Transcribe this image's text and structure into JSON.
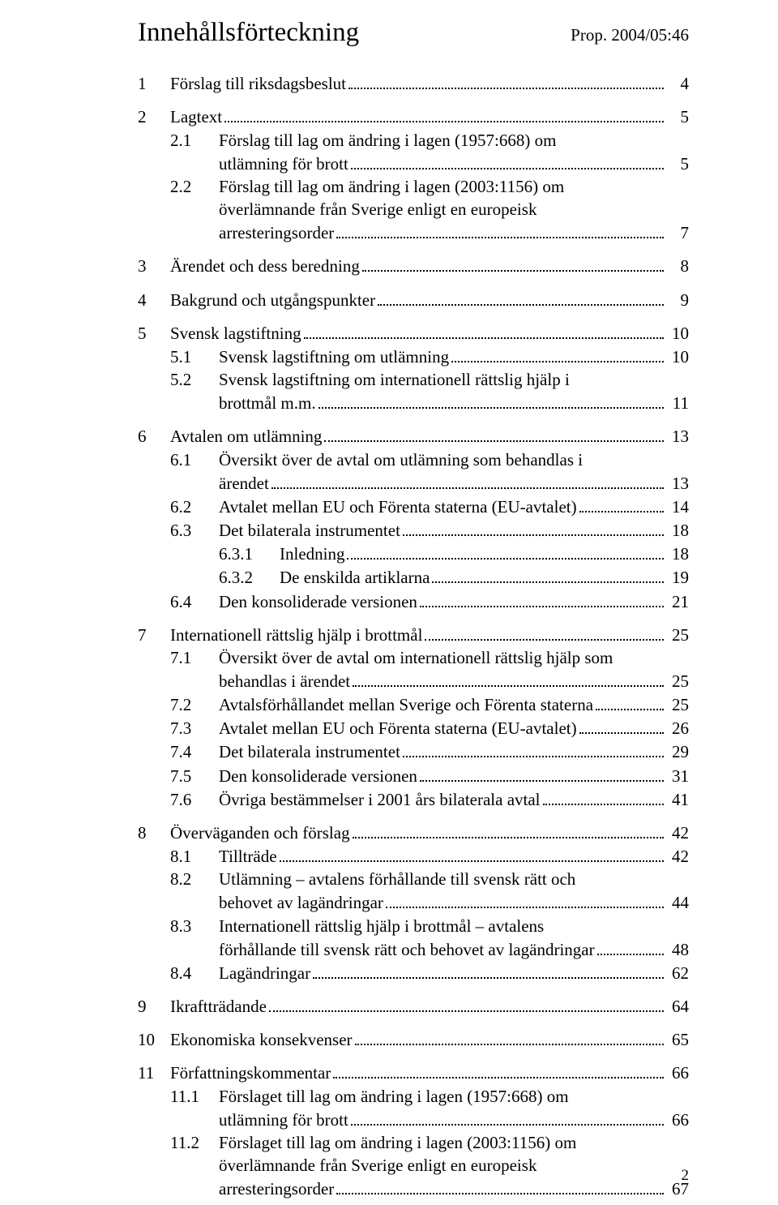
{
  "header": {
    "toc_title": "Innehållsförteckning",
    "prop_label": "Prop. 2004/05:46"
  },
  "footer": {
    "page_number": "2"
  },
  "entries": [
    {
      "lvl": 1,
      "num": "1",
      "text": "Förslag till riksdagsbeslut",
      "page": "4",
      "first": true
    },
    {
      "lvl": 1,
      "num": "2",
      "text": "Lagtext",
      "page": "5",
      "first": true
    },
    {
      "lvl": 2,
      "num": "2.1",
      "text_a": "Förslag till lag om ändring i lagen (1957:668) om",
      "text_b": "utlämning för brott",
      "page": "5"
    },
    {
      "lvl": 2,
      "num": "2.2",
      "text_a": "Förslag till lag om ändring i lagen (2003:1156) om",
      "text_b": "överlämnande från Sverige enligt en europeisk",
      "text_c": "arresteringsorder",
      "page": "7"
    },
    {
      "lvl": 1,
      "num": "3",
      "text": "Ärendet och dess beredning",
      "page": "8",
      "first": true
    },
    {
      "lvl": 1,
      "num": "4",
      "text": "Bakgrund och utgångspunkter",
      "page": "9",
      "first": true
    },
    {
      "lvl": 1,
      "num": "5",
      "text": "Svensk lagstiftning",
      "page": "10",
      "first": true
    },
    {
      "lvl": 2,
      "num": "5.1",
      "text": "Svensk lagstiftning om utlämning",
      "page": "10"
    },
    {
      "lvl": 2,
      "num": "5.2",
      "text_a": "Svensk lagstiftning om internationell rättslig hjälp i",
      "text_b": "brottmål m.m.",
      "page": "11"
    },
    {
      "lvl": 1,
      "num": "6",
      "text": "Avtalen om utlämning",
      "page": "13",
      "first": true
    },
    {
      "lvl": 2,
      "num": "6.1",
      "text_a": "Översikt över de avtal om utlämning som behandlas i",
      "text_b": "ärendet",
      "page": "13"
    },
    {
      "lvl": 2,
      "num": "6.2",
      "text": "Avtalet mellan EU och Förenta staterna (EU-avtalet)",
      "page": "14"
    },
    {
      "lvl": 2,
      "num": "6.3",
      "text": "Det bilaterala instrumentet",
      "page": "18"
    },
    {
      "lvl": 3,
      "num": "6.3.1",
      "text": "Inledning",
      "page": "18"
    },
    {
      "lvl": 3,
      "num": "6.3.2",
      "text": "De enskilda artiklarna",
      "page": "19"
    },
    {
      "lvl": 2,
      "num": "6.4",
      "text": "Den konsoliderade versionen",
      "page": "21"
    },
    {
      "lvl": 1,
      "num": "7",
      "text": "Internationell rättslig hjälp i brottmål",
      "page": "25",
      "first": true
    },
    {
      "lvl": 2,
      "num": "7.1",
      "text_a": "Översikt över de avtal om internationell rättslig hjälp som",
      "text_b": "behandlas i ärendet",
      "page": "25"
    },
    {
      "lvl": 2,
      "num": "7.2",
      "text": "Avtalsförhållandet mellan Sverige och Förenta staterna",
      "page": "25"
    },
    {
      "lvl": 2,
      "num": "7.3",
      "text": "Avtalet mellan EU och Förenta staterna (EU-avtalet)",
      "page": "26"
    },
    {
      "lvl": 2,
      "num": "7.4",
      "text": "Det bilaterala instrumentet",
      "page": "29"
    },
    {
      "lvl": 2,
      "num": "7.5",
      "text": "Den konsoliderade versionen",
      "page": "31"
    },
    {
      "lvl": 2,
      "num": "7.6",
      "text": "Övriga bestämmelser i 2001 års bilaterala avtal",
      "page": "41"
    },
    {
      "lvl": 1,
      "num": "8",
      "text": "Överväganden och förslag",
      "page": "42",
      "first": true
    },
    {
      "lvl": 2,
      "num": "8.1",
      "text": "Tillträde",
      "page": "42"
    },
    {
      "lvl": 2,
      "num": "8.2",
      "text_a": "Utlämning – avtalens förhållande till svensk rätt och",
      "text_b": "behovet av lagändringar",
      "page": "44"
    },
    {
      "lvl": 2,
      "num": "8.3",
      "text_a": "Internationell rättslig hjälp i brottmål – avtalens",
      "text_b": "förhållande till svensk rätt och behovet av lagändringar",
      "page": "48"
    },
    {
      "lvl": 2,
      "num": "8.4",
      "text": "Lagändringar",
      "page": "62"
    },
    {
      "lvl": 1,
      "num": "9",
      "text": "Ikraftträdande",
      "page": "64",
      "first": true
    },
    {
      "lvl": 1,
      "num": "10",
      "text": "Ekonomiska konsekvenser",
      "page": "65",
      "first": true
    },
    {
      "lvl": 1,
      "num": "11",
      "text": "Författningskommentar",
      "page": "66",
      "first": true
    },
    {
      "lvl": 2,
      "num": "11.1",
      "text_a": "Förslaget till lag om ändring i lagen (1957:668) om",
      "text_b": "utlämning för brott",
      "page": "66"
    },
    {
      "lvl": 2,
      "num": "11.2",
      "text_a": "Förslaget till lag om ändring i lagen (2003:1156) om",
      "text_b": "överlämnande från Sverige enligt en europeisk",
      "text_c": "arresteringsorder",
      "page": "67"
    }
  ]
}
